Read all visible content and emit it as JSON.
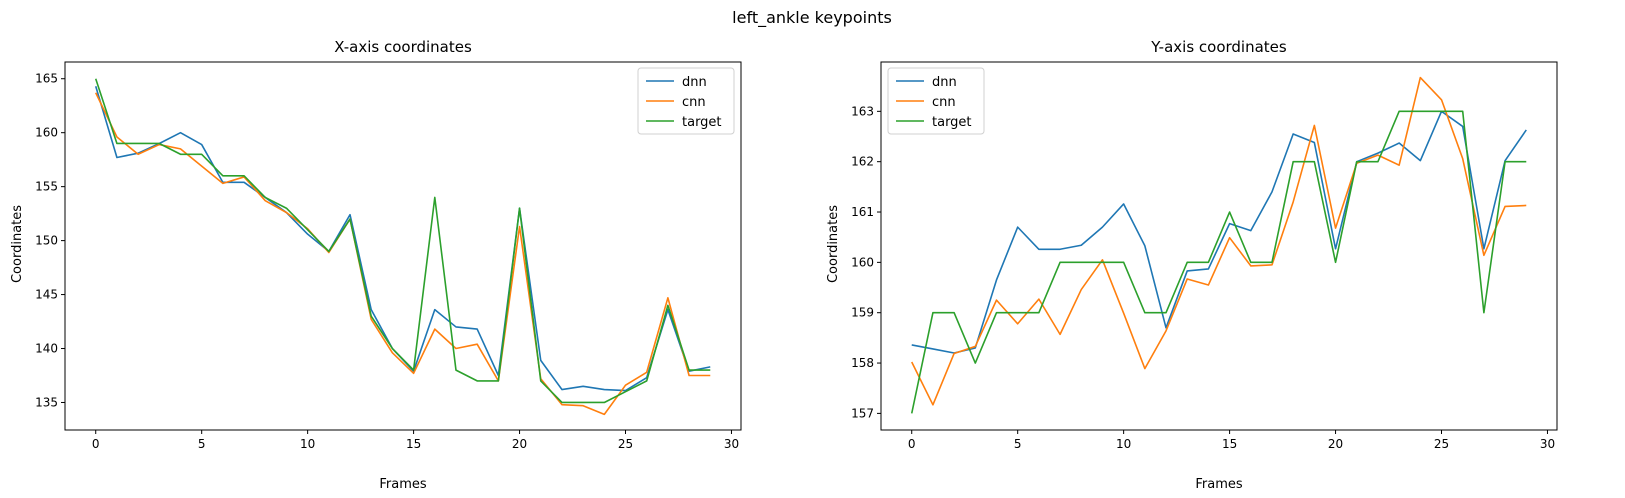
{
  "figure": {
    "suptitle": "left_ankle keypoints"
  },
  "colors": {
    "dnn": "#1f77b4",
    "cnn": "#ff7f0e",
    "target": "#2ca02c"
  },
  "chart_data": [
    {
      "type": "line",
      "title": "X-axis coordinates",
      "xlabel": "Frames",
      "ylabel": "Coordinates",
      "xlim": [
        -1.45,
        30.45
      ],
      "ylim": [
        132.45,
        166.55
      ],
      "xticks": [
        0,
        5,
        10,
        15,
        20,
        25,
        30
      ],
      "yticks": [
        135,
        140,
        145,
        150,
        155,
        160,
        165
      ],
      "grid": false,
      "legend": "top-right",
      "x": [
        0,
        1,
        2,
        3,
        4,
        5,
        6,
        7,
        8,
        9,
        10,
        11,
        12,
        13,
        14,
        15,
        16,
        17,
        18,
        19,
        20,
        21,
        22,
        23,
        24,
        25,
        26,
        27,
        28,
        29
      ],
      "series": [
        {
          "name": "dnn",
          "values": [
            164.3,
            157.7,
            158.1,
            159.0,
            160.0,
            158.9,
            155.4,
            155.4,
            154.0,
            152.6,
            150.6,
            149.0,
            152.4,
            143.6,
            140.0,
            137.9,
            143.6,
            142.0,
            141.8,
            137.5,
            153.0,
            138.9,
            136.2,
            136.5,
            136.2,
            136.1,
            137.3,
            143.6,
            137.9,
            138.3
          ]
        },
        {
          "name": "cnn",
          "values": [
            163.7,
            159.6,
            158.0,
            158.9,
            158.5,
            156.9,
            155.3,
            155.9,
            153.7,
            152.6,
            151.1,
            148.9,
            152.0,
            142.7,
            139.6,
            137.7,
            141.8,
            140.0,
            140.4,
            137.0,
            151.3,
            137.2,
            134.8,
            134.7,
            133.9,
            136.6,
            137.8,
            144.7,
            137.5,
            137.5
          ]
        },
        {
          "name": "target",
          "values": [
            165.0,
            159.0,
            159.0,
            159.0,
            158.0,
            158.0,
            156.0,
            156.0,
            154.0,
            153.0,
            151.0,
            149.0,
            152.0,
            143.0,
            140.0,
            138.0,
            154.0,
            138.0,
            137.0,
            137.0,
            153.0,
            137.0,
            135.0,
            135.0,
            135.0,
            136.0,
            137.0,
            144.0,
            138.0,
            138.0
          ]
        }
      ]
    },
    {
      "type": "line",
      "title": "Y-axis coordinates",
      "xlabel": "Frames",
      "ylabel": "Coordinates",
      "xlim": [
        -1.45,
        30.45
      ],
      "ylim": [
        156.67,
        163.98
      ],
      "xticks": [
        0,
        5,
        10,
        15,
        20,
        25,
        30
      ],
      "yticks": [
        157,
        158,
        159,
        160,
        161,
        162,
        163
      ],
      "grid": false,
      "legend": "top-left",
      "x": [
        0,
        1,
        2,
        3,
        4,
        5,
        6,
        7,
        8,
        9,
        10,
        11,
        12,
        13,
        14,
        15,
        16,
        17,
        18,
        19,
        20,
        21,
        22,
        23,
        24,
        25,
        26,
        27,
        28,
        29
      ],
      "series": [
        {
          "name": "dnn",
          "values": [
            158.36,
            158.28,
            158.2,
            158.3,
            159.65,
            160.7,
            160.26,
            160.26,
            160.34,
            160.7,
            161.16,
            160.33,
            158.7,
            159.83,
            159.87,
            160.77,
            160.63,
            161.4,
            162.55,
            162.38,
            160.27,
            162.0,
            162.17,
            162.37,
            162.02,
            163.0,
            162.7,
            160.27,
            162.02,
            162.63
          ]
        },
        {
          "name": "cnn",
          "values": [
            158.02,
            157.17,
            158.19,
            158.33,
            159.25,
            158.78,
            159.27,
            158.57,
            159.46,
            160.05,
            158.99,
            157.89,
            158.64,
            159.67,
            159.55,
            160.49,
            159.93,
            159.95,
            161.2,
            162.72,
            160.68,
            161.97,
            162.13,
            161.93,
            163.67,
            163.23,
            162.06,
            160.14,
            161.11,
            161.13
          ]
        },
        {
          "name": "target",
          "values": [
            157.0,
            159.0,
            159.0,
            158.0,
            159.0,
            159.0,
            159.0,
            160.0,
            160.0,
            160.0,
            160.0,
            159.0,
            159.0,
            160.0,
            160.0,
            161.0,
            160.0,
            160.0,
            162.0,
            162.0,
            160.0,
            162.0,
            162.0,
            163.0,
            163.0,
            163.0,
            163.0,
            159.0,
            162.0,
            162.0
          ]
        }
      ]
    }
  ]
}
